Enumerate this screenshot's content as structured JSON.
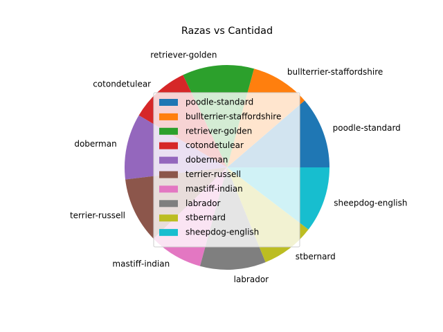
{
  "chart_data": {
    "type": "pie",
    "title": "Razas vs Cantidad",
    "categories": [
      "poodle-standard",
      "bullterrier-staffordshire",
      "retriever-golden",
      "cotondetulear",
      "doberman",
      "terrier-russell",
      "mastiff-indian",
      "labrador",
      "stbernard",
      "sheepdog-english"
    ],
    "values": [
      12,
      10,
      12,
      10,
      11,
      11,
      9,
      11,
      9,
      11
    ],
    "colors": [
      "#1f77b4",
      "#ff7f0e",
      "#2ca02c",
      "#d62728",
      "#9467bd",
      "#8c564b",
      "#e377c2",
      "#7f7f7f",
      "#bcbd22",
      "#17becf"
    ],
    "start_angle_deg": 0,
    "direction": "counterclockwise",
    "legend": "center"
  }
}
